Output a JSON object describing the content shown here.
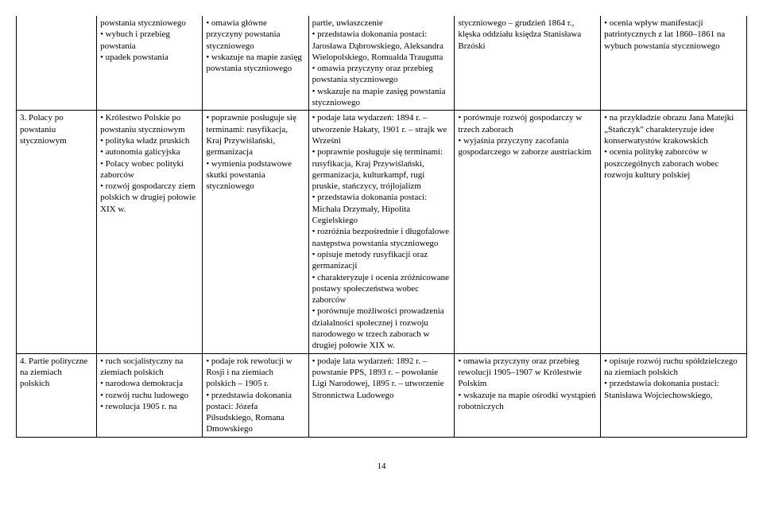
{
  "rows": [
    {
      "c0": "",
      "c1": "powstania styczniowego\n• wybuch i przebieg powstania\n• upadek powstania",
      "c2": "• omawia główne przyczyny powstania styczniowego\n• wskazuje na mapie zasięg powstania styczniowego",
      "c3": "partie, uwłaszczenie\n• przedstawia dokonania postaci: Jarosława Dąbrowskiego, Aleksandra Wielopolskiego, Romualda Traugutta\n• omawia przyczyny oraz przebieg powstania styczniowego\n• wskazuje na mapie zasięg powstania styczniowego",
      "c4": "styczniowego – grudzień 1864 r., klęska oddziału księdza Stanisława Brzóski",
      "c5": "• ocenia wpływ manifestacji patriotycznych z lat 1860–1861 na wybuch powstania styczniowego"
    },
    {
      "c0": "3. Polacy po powstaniu styczniowym",
      "c1": "• Królestwo Polskie po powstaniu styczniowym\n• polityka władz pruskich\n• autonomia galicyjska\n• Polacy wobec polityki zaborców\n• rozwój gospodarczy ziem polskich w drugiej połowie XIX w.",
      "c2": "• poprawnie posługuje się terminami: rusyfikacja, Kraj Przywiślański, germanizacja\n• wymienia podstawowe skutki powstania styczniowego",
      "c3": "• podaje lata wydarzeń: 1894 r. – utworzenie Hakaty, 1901 r. – strajk we Wrześni\n• poprawnie posługuje się terminami: rusyfikacja, Kraj Przywiślański, germanizacja, kulturkampf, rugi pruskie, stańczycy, trójlojalizm\n• przedstawia dokonania postaci: Michała Drzymały, Hipolita Cegielskiego\n• rozróżnia bezpośrednie i długofalowe następstwa powstania styczniowego\n• opisuje metody rusyfikacji oraz germanizacji\n• charakteryzuje i ocenia zróżnicowane postawy społeczeństwa wobec zaborców\n• porównuje możliwości prowadzenia działalności społecznej i rozwoju narodowego w trzech zaborach w drugiej połowie XIX w.",
      "c4": "• porównuje rozwój gospodarczy w trzech zaborach\n• wyjaśnia przyczyny zacofania gospodarczego w zaborze austriackim",
      "c5": "• na przykładzie obrazu Jana Matejki „Stańczyk\" charakteryzuje idee konserwatystów krakowskich\n• ocenia politykę zaborców w poszczególnych zaborach wobec rozwoju kultury polskiej"
    },
    {
      "c0": "4. Partie polityczne na ziemiach polskich",
      "c1": "• ruch socjalistyczny na ziemiach polskich\n• narodowa demokracja\n• rozwój ruchu ludowego\n• rewolucja 1905 r. na",
      "c2": "• podaje rok rewolucji w Rosji i na ziemiach polskich – 1905 r.\n• przedstawia dokonania postaci: Józefa Piłsudskiego, Romana Dmowskiego",
      "c3": "• podaje lata wydarzeń: 1892 r. – powstanie PPS, 1893 r. – powołanie Ligi Narodowej, 1895 r. – utworzenie Stronnictwa Ludowego",
      "c4": "• omawia przyczyny oraz przebieg rewolucji 1905–1907 w Królestwie Polskim\n• wskazuje na mapie ośrodki wystąpień robotniczych",
      "c5": "• opisuje rozwój ruchu spółdzielczego na ziemiach polskich\n• przedstawia dokonania postaci: Stanisława Wojciechowskiego,"
    }
  ],
  "pageNumber": "14"
}
